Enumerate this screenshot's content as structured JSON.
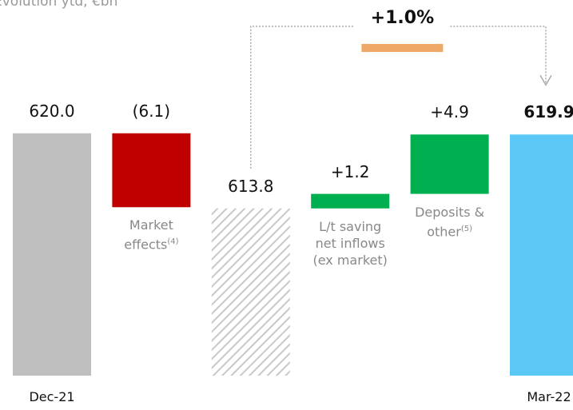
{
  "chart_data": {
    "type": "waterfall",
    "title": "Evolution ytd, €bn",
    "categories": [
      "Dec-21",
      "Market effects",
      null,
      "L/t saving net inflows (ex market)",
      "Deposits & other",
      "Mar-22"
    ],
    "footnotes": [
      null,
      "(4)",
      null,
      null,
      "(5)",
      null
    ],
    "kinds": [
      "total",
      "delta",
      "total",
      "delta",
      "delta",
      "total"
    ],
    "values": [
      620.0,
      -6.1,
      613.8,
      1.2,
      4.9,
      619.9
    ],
    "value_labels": [
      "620.0",
      "(6.1)",
      "613.8",
      "+1.2",
      "+4.9",
      "619.9"
    ],
    "colors": [
      "#bfbfbf",
      "#c00000",
      "#bfbfbf",
      "#00b050",
      "#00b050",
      "#5bc8f5"
    ],
    "hatched": [
      false,
      false,
      true,
      false,
      false,
      false
    ],
    "ylim": [
      600,
      631
    ],
    "annotation": {
      "text": "+1.0%",
      "from": 2,
      "to": 5,
      "color": "#f0a868"
    }
  }
}
